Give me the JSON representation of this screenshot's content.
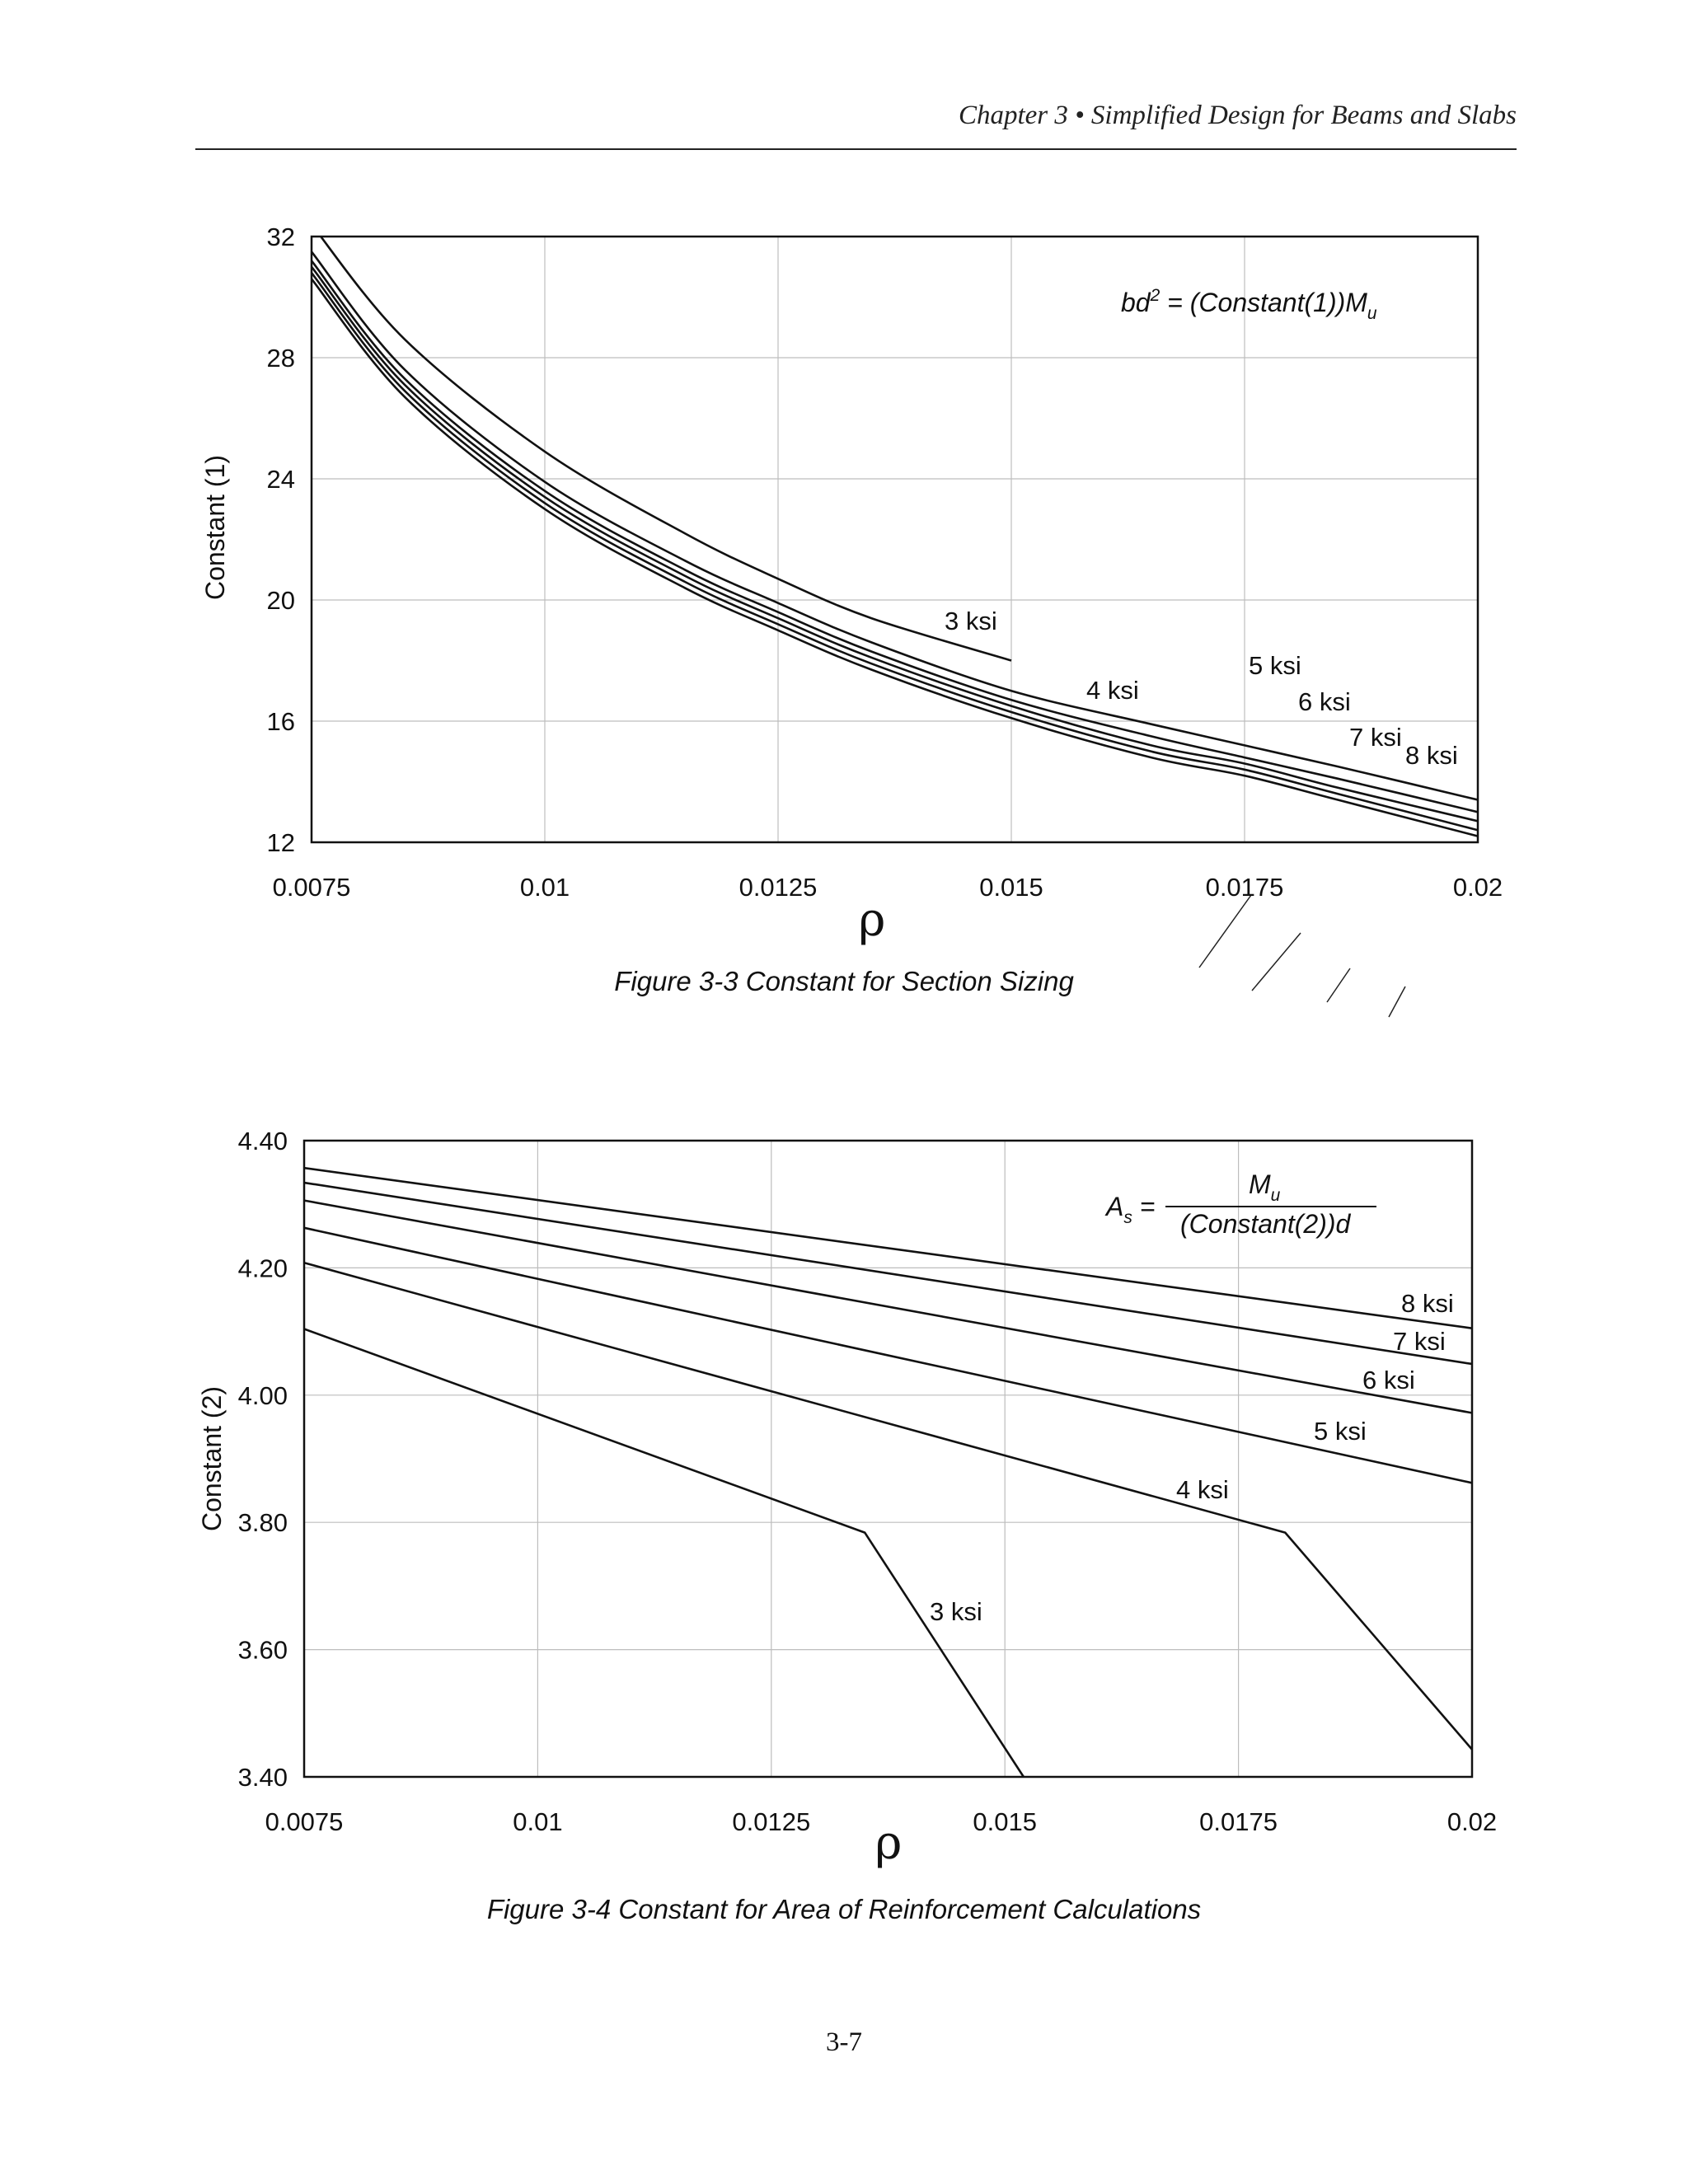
{
  "page": {
    "header": "Chapter 3 • Simplified Design for Beams and Slabs",
    "page_number": "3-7"
  },
  "chart_data": [
    {
      "type": "line",
      "caption": "Figure 3-3 Constant for Section Sizing",
      "xlabel": "ρ",
      "ylabel": "Constant (1)",
      "formula": {
        "main": "bd",
        "sup": "2",
        "mid": " = (Constant(1))M",
        "sub": "u"
      },
      "xlim": [
        0.0075,
        0.02
      ],
      "ylim": [
        12,
        32
      ],
      "x_ticks": [
        "0.0075",
        "0.01",
        "0.0125",
        "0.015",
        "0.0175",
        "0.02"
      ],
      "y_ticks": [
        "12",
        "16",
        "20",
        "24",
        "28",
        "32"
      ],
      "grid": true,
      "series": [
        {
          "name": "3 ksi",
          "x": [
            0.0075,
            0.0085,
            0.01,
            0.0115,
            0.0125,
            0.0135,
            0.015
          ],
          "y": [
            32.4,
            28.6,
            24.9,
            22.2,
            20.7,
            19.4,
            18.0
          ]
        },
        {
          "name": "4 ksi",
          "x": [
            0.0075,
            0.0085,
            0.01,
            0.0115,
            0.0125,
            0.0135,
            0.015,
            0.0165,
            0.0175,
            0.0185,
            0.02
          ],
          "y": [
            31.5,
            27.6,
            23.9,
            21.3,
            19.9,
            18.6,
            17.0,
            15.9,
            15.2,
            14.5,
            13.4
          ]
        },
        {
          "name": "5 ksi",
          "x": [
            0.0075,
            0.0085,
            0.01,
            0.0115,
            0.0125,
            0.0135,
            0.015,
            0.0165,
            0.0175,
            0.0185,
            0.02
          ],
          "y": [
            31.2,
            27.3,
            23.6,
            21.0,
            19.6,
            18.3,
            16.7,
            15.5,
            14.8,
            14.1,
            13.0
          ]
        },
        {
          "name": "6 ksi",
          "x": [
            0.0075,
            0.0085,
            0.01,
            0.0115,
            0.0125,
            0.0135,
            0.015,
            0.0165,
            0.0175,
            0.0185,
            0.02
          ],
          "y": [
            31.0,
            27.1,
            23.4,
            20.8,
            19.4,
            18.1,
            16.5,
            15.2,
            14.6,
            13.8,
            12.7
          ]
        },
        {
          "name": "7 ksi",
          "x": [
            0.0075,
            0.0085,
            0.01,
            0.0115,
            0.0125,
            0.0135,
            0.015,
            0.0165,
            0.0175,
            0.0185,
            0.02
          ],
          "y": [
            30.8,
            26.9,
            23.2,
            20.6,
            19.2,
            17.9,
            16.3,
            15.0,
            14.4,
            13.6,
            12.4
          ]
        },
        {
          "name": "8 ksi",
          "x": [
            0.0075,
            0.0085,
            0.01,
            0.0115,
            0.0125,
            0.0135,
            0.015,
            0.0165,
            0.0175,
            0.0185,
            0.02
          ],
          "y": [
            30.6,
            26.7,
            23.0,
            20.4,
            19.0,
            17.7,
            16.1,
            14.8,
            14.2,
            13.4,
            12.2
          ]
        }
      ]
    },
    {
      "type": "line",
      "caption": "Figure 3-4 Constant for Area of Reinforcement Calculations",
      "xlabel": "ρ",
      "ylabel": "Constant (2)",
      "formula": {
        "lhs": "A",
        "lhs_sub": "s",
        "eq": " =",
        "numerator": "M",
        "numerator_sub": "u",
        "denominator": "(Constant(2))d"
      },
      "xlim": [
        0.0075,
        0.02
      ],
      "ylim": [
        3.4,
        4.4
      ],
      "x_ticks": [
        "0.0075",
        "0.01",
        "0.0125",
        "0.015",
        "0.0175",
        "0.02"
      ],
      "y_ticks": [
        "3.40",
        "3.60",
        "3.80",
        "4.00",
        "4.20",
        "4.40"
      ],
      "grid": true,
      "series": [
        {
          "name": "8 ksi",
          "x": [
            0.0075,
            0.02
          ],
          "y": [
            4.357,
            4.105
          ]
        },
        {
          "name": "7 ksi",
          "x": [
            0.0075,
            0.02
          ],
          "y": [
            4.334,
            4.049
          ]
        },
        {
          "name": "6 ksi",
          "x": [
            0.0075,
            0.02
          ],
          "y": [
            4.306,
            3.972
          ]
        },
        {
          "name": "5 ksi",
          "x": [
            0.0075,
            0.02
          ],
          "y": [
            4.263,
            3.862
          ]
        },
        {
          "name": "4 ksi",
          "x": [
            0.0075,
            0.018,
            0.02
          ],
          "y": [
            4.208,
            3.784,
            3.443
          ]
        },
        {
          "name": "3 ksi",
          "x": [
            0.0075,
            0.0135,
            0.0152
          ],
          "y": [
            4.104,
            3.784,
            3.4
          ]
        }
      ]
    }
  ]
}
